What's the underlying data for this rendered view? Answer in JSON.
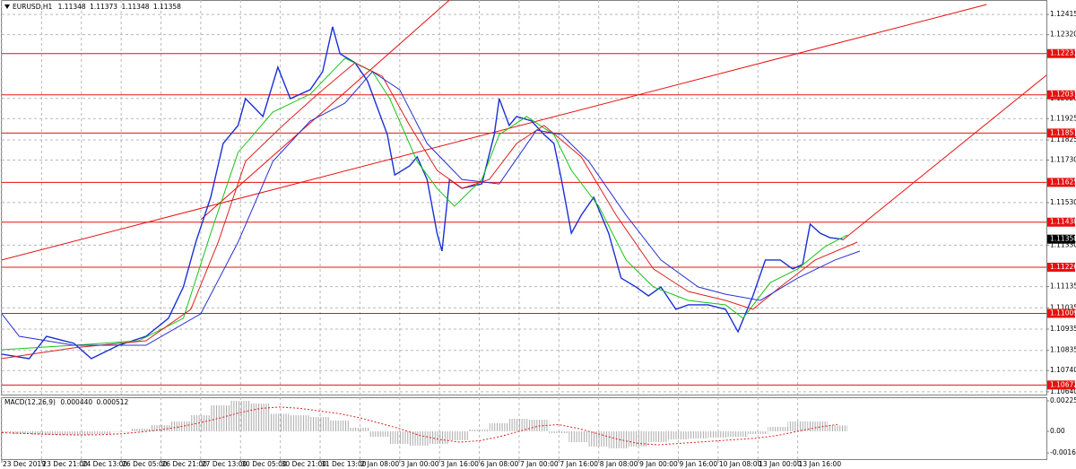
{
  "chart_data": [
    {
      "type": "line",
      "title": "EURUSD,H1",
      "ohlc": [
        1.11348,
        1.11373,
        1.11348,
        1.11358
      ],
      "xlim": [
        0,
        420
      ],
      "ylim": [
        1.10627,
        1.12483
      ],
      "grid": true,
      "yticks": [
        1.12415,
        {
          "value": 1.1232,
          "label": "1.12320"
        },
        {
          "value": 1.1202,
          "label": "1.12020"
        },
        1.11925,
        1.11825,
        {
          "value": 1.1173,
          "label": "1.11730"
        },
        {
          "value": 1.1153,
          "label": "1.11530"
        },
        {
          "value": 1.1133,
          "label": "1.11330"
        },
        1.11135,
        1.11035,
        1.10935,
        1.10835,
        {
          "value": 1.1074,
          "label": "1.10740"
        },
        {
          "value": 1.1064,
          "label": "1.10640"
        }
      ],
      "xticks": [
        {
          "value": 0,
          "label": "23 Dec 2019"
        },
        {
          "value": 16,
          "label": "23 Dec 21:00"
        },
        {
          "value": 32,
          "label": "24 Dec 13:00"
        },
        {
          "value": 48,
          "label": "26 Dec 05:00"
        },
        {
          "value": 64,
          "label": "26 Dec 21:00"
        },
        {
          "value": 80,
          "label": "27 Dec 13:00"
        },
        {
          "value": 96,
          "label": "30 Dec 05:00"
        },
        {
          "value": 112,
          "label": "30 Dec 21:00"
        },
        {
          "value": 128,
          "label": "31 Dec 13:00"
        },
        {
          "value": 144,
          "label": "2 Jan 08:00"
        },
        {
          "value": 160,
          "label": "3 Jan 00:00"
        },
        {
          "value": 176,
          "label": "3 Jan 16:00"
        },
        {
          "value": 192,
          "label": "6 Jan 08:00"
        },
        {
          "value": 208,
          "label": "7 Jan 00:00"
        },
        {
          "value": 224,
          "label": "7 Jan 16:00"
        },
        {
          "value": 240,
          "label": "8 Jan 08:00"
        },
        {
          "value": 256,
          "label": "9 Jan 00:00"
        },
        {
          "value": 272,
          "label": "9 Jan 16:00"
        },
        {
          "value": 288,
          "label": "10 Jan 08:00"
        },
        {
          "value": 304,
          "label": "13 Jan 00:00"
        },
        {
          "value": 320,
          "label": "13 Jan 16:00"
        }
      ],
      "series": [
        {
          "color": "#1a2fd6",
          "x": [
            0,
            11,
            18,
            29,
            36,
            47,
            58,
            67,
            73,
            78,
            84,
            89,
            95,
            98,
            105,
            111,
            116,
            124,
            129,
            133,
            136,
            142,
            147,
            151,
            155,
            158,
            164,
            167,
            171,
            175,
            177,
            180,
            185,
            193,
            198,
            200,
            204,
            207,
            213,
            218,
            222,
            225,
            229,
            233,
            238,
            244,
            249,
            255,
            260,
            265,
            271,
            276,
            284,
            291,
            296,
            302,
            307,
            313,
            318,
            322,
            325,
            329,
            333,
            338
          ],
          "values": [
            1.10817,
            1.10796,
            1.10901,
            1.10868,
            1.10796,
            1.10859,
            1.10901,
            1.10986,
            1.11133,
            1.11344,
            1.11555,
            1.11808,
            1.11893,
            1.12019,
            1.11935,
            1.12167,
            1.12019,
            1.12061,
            1.12146,
            1.12357,
            1.1223,
            1.12188,
            1.12103,
            1.11977,
            1.1185,
            1.1166,
            1.11703,
            1.11745,
            1.11639,
            1.11386,
            1.11302,
            1.11639,
            1.11597,
            1.11618,
            1.1185,
            1.12019,
            1.11893,
            1.11935,
            1.11914,
            1.1185,
            1.11808,
            1.11639,
            1.11386,
            1.11471,
            1.11555,
            1.11386,
            1.11175,
            1.11133,
            1.11091,
            1.11133,
            1.11028,
            1.11049,
            1.11049,
            1.11028,
            1.10922,
            1.11091,
            1.1126,
            1.1126,
            1.11218,
            1.11239,
            1.11429,
            1.11386,
            1.11365,
            1.11358
          ]
        },
        {
          "color": "#18c418",
          "x": [
            0,
            29,
            55,
            73,
            84,
            95,
            109,
            124,
            138,
            149,
            156,
            167,
            175,
            182,
            193,
            200,
            211,
            222,
            229,
            240,
            251,
            262,
            276,
            291,
            298,
            309,
            320,
            331,
            340
          ],
          "values": [
            1.10838,
            1.10859,
            1.1088,
            1.10986,
            1.11386,
            1.11766,
            1.11956,
            1.1204,
            1.12209,
            1.12146,
            1.12019,
            1.11724,
            1.11597,
            1.11513,
            1.11639,
            1.1185,
            1.11935,
            1.1185,
            1.11682,
            1.11513,
            1.1126,
            1.11133,
            1.1107,
            1.11049,
            1.10986,
            1.11154,
            1.11218,
            1.11323,
            1.11378
          ]
        },
        {
          "color": "#e02020",
          "x": [
            0,
            29,
            58,
            76,
            87,
            98,
            113,
            127,
            142,
            153,
            164,
            175,
            185,
            196,
            207,
            218,
            233,
            247,
            262,
            276,
            291,
            302,
            313,
            327,
            344
          ],
          "values": [
            1.10796,
            1.10847,
            1.1088,
            1.11028,
            1.11344,
            1.11724,
            1.11893,
            1.1204,
            1.12188,
            1.12124,
            1.11893,
            1.11682,
            1.11597,
            1.11639,
            1.11808,
            1.11893,
            1.11745,
            1.11471,
            1.11218,
            1.11112,
            1.1107,
            1.11028,
            1.11133,
            1.1126,
            1.11344
          ]
        },
        {
          "color": "#2830d0",
          "x": [
            0,
            7,
            29,
            58,
            80,
            95,
            109,
            124,
            138,
            149,
            160,
            171,
            185,
            200,
            215,
            225,
            236,
            251,
            265,
            280,
            291,
            305,
            320,
            335,
            345
          ],
          "values": [
            1.11007,
            1.10901,
            1.10859,
            1.10859,
            1.11007,
            1.11344,
            1.11724,
            1.11914,
            1.11998,
            1.12146,
            1.12061,
            1.11808,
            1.11639,
            1.11618,
            1.11871,
            1.1185,
            1.11724,
            1.11471,
            1.1126,
            1.11133,
            1.11099,
            1.1107,
            1.11175,
            1.1126,
            1.11302
          ]
        }
      ],
      "levels": [
        1.12231,
        1.12037,
        1.11857,
        1.11625,
        1.11438,
        1.11226,
        1.11009,
        1.10672
      ],
      "level_color": "#e81010",
      "last_price": 1.11358,
      "trendlines": [
        {
          "x": [
            0,
            396
          ],
          "y": [
            1.1126,
            1.12462
          ]
        },
        {
          "x": [
            80,
            180
          ],
          "y": [
            1.1145,
            1.12483
          ]
        },
        {
          "x": [
            338,
            424
          ],
          "y": [
            1.11353,
            1.12167
          ]
        }
      ]
    },
    {
      "type": "bar",
      "title": "MACD(12,26,9)",
      "indicator_values": [
        {
          "value": 0.00044,
          "label": "0.000440"
        },
        0.000512
      ],
      "ylim": [
        -0.00206,
        0.002524
      ],
      "yticks": [
        0.002258,
        {
          "value": 0,
          "label": "0.00"
        },
        -0.00161
      ],
      "x": [
        0,
        8,
        16,
        24,
        32,
        40,
        48,
        56,
        64,
        72,
        80,
        88,
        96,
        104,
        112,
        120,
        128,
        136,
        144,
        152,
        160,
        168,
        176,
        184,
        192,
        200,
        208,
        216,
        224,
        232,
        240,
        248,
        256,
        264,
        272,
        280,
        288,
        296,
        304,
        312,
        320,
        328,
        336
      ],
      "values": [
        -7e-05,
        -0.0002,
        -0.00027,
        -0.00027,
        -0.00027,
        -0.0002,
        0,
        0.0002,
        0.00046,
        0.00073,
        0.00119,
        0.00193,
        0.00226,
        0.00206,
        0.0013,
        0.00119,
        0.00106,
        0.0008,
        0.00027,
        -0.0004,
        -0.00093,
        -0.00106,
        -0.00093,
        -0.00066,
        0.00013,
        0.0006,
        0.00093,
        0.00086,
        -0.00013,
        -0.0008,
        -0.00113,
        -0.00126,
        -0.00113,
        -0.0008,
        -0.0006,
        -0.00053,
        -0.00046,
        -0.0004,
        -0.0002,
        0.00033,
        0.00073,
        0.00073,
        0.00044
      ],
      "color": "#a8a8a8",
      "signal": [
        -0.0001,
        -0.00015,
        -0.0002,
        -0.00025,
        -0.00027,
        -0.00025,
        -0.00018,
        -5e-05,
        0.00012,
        0.00035,
        0.00065,
        0.001,
        0.0014,
        0.0017,
        0.0018,
        0.0017,
        0.0015,
        0.0013,
        0.001,
        0.0006,
        0.0002,
        -0.0003,
        -0.0006,
        -0.0008,
        -0.0007,
        -0.0004,
        0,
        0.0004,
        0.0005,
        0.0002,
        -0.0002,
        -0.0006,
        -0.0009,
        -0.001,
        -0.0009,
        -0.0008,
        -0.0007,
        -0.0006,
        -0.0005,
        -0.0003,
        0,
        0.0003,
        0.000512
      ],
      "signal_color": "#e02020"
    }
  ]
}
